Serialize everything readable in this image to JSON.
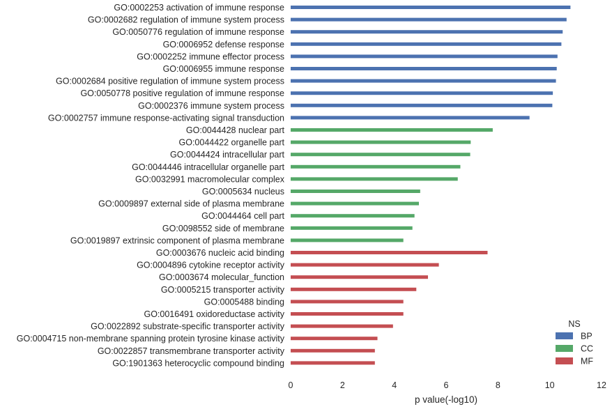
{
  "chart_data": {
    "type": "bar",
    "orientation": "horizontal",
    "categories": [
      "GO:0002253 activation of immune response",
      "GO:0002682 regulation of immune system process",
      "GO:0050776 regulation of immune response",
      "GO:0006952 defense response",
      "GO:0002252 immune effector process",
      "GO:0006955 immune response",
      "GO:0002684 positive regulation of immune system process",
      "GO:0050778 positive regulation of immune response",
      "GO:0002376 immune system process",
      "GO:0002757 immune response-activating signal transduction",
      "GO:0044428 nuclear part",
      "GO:0044422 organelle part",
      "GO:0044424 intracellular part",
      "GO:0044446 intracellular organelle part",
      "GO:0032991 macromolecular complex",
      "GO:0005634 nucleus",
      "GO:0009897 external side of plasma membrane",
      "GO:0044464 cell part",
      "GO:0098552 side of membrane",
      "GO:0019897 extrinsic component of plasma membrane",
      "GO:0003676 nucleic acid binding",
      "GO:0004896 cytokine receptor activity",
      "GO:0003674 molecular_function",
      "GO:0005215 transporter activity",
      "GO:0005488 binding",
      "GO:0016491 oxidoreductase activity",
      "GO:0022892 substrate-specific transporter activity",
      "GO:0004715 non-membrane spanning protein tyrosine kinase activity",
      "GO:0022857 transmembrane transporter activity",
      "GO:1901363 heterocyclic compound binding"
    ],
    "values": [
      10.8,
      10.65,
      10.5,
      10.45,
      10.3,
      10.27,
      10.24,
      10.12,
      10.1,
      9.22,
      7.8,
      6.95,
      6.93,
      6.55,
      6.45,
      5.0,
      4.95,
      4.78,
      4.7,
      4.35,
      7.6,
      5.72,
      5.3,
      4.85,
      4.35,
      4.35,
      3.95,
      3.35,
      3.25,
      3.25
    ],
    "groups": [
      "BP",
      "BP",
      "BP",
      "BP",
      "BP",
      "BP",
      "BP",
      "BP",
      "BP",
      "BP",
      "CC",
      "CC",
      "CC",
      "CC",
      "CC",
      "CC",
      "CC",
      "CC",
      "CC",
      "CC",
      "MF",
      "MF",
      "MF",
      "MF",
      "MF",
      "MF",
      "MF",
      "MF",
      "MF",
      "MF"
    ],
    "xlabel": "p value(-log10)",
    "ylabel": "",
    "xlim": [
      0,
      12
    ],
    "xticks": [
      "0",
      "2",
      "4",
      "6",
      "8",
      "10",
      "12"
    ],
    "grid": false,
    "legend": {
      "title": "NS",
      "position": "bottom-right",
      "entries": [
        {
          "label": "BP",
          "color": "#4c72b0"
        },
        {
          "label": "CC",
          "color": "#55a868"
        },
        {
          "label": "MF",
          "color": "#c44e52"
        }
      ]
    }
  }
}
